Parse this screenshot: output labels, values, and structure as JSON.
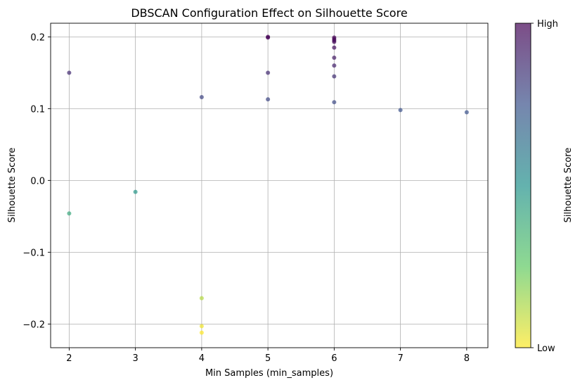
{
  "chart_data": {
    "type": "scatter",
    "title": "DBSCAN Configuration Effect on Silhouette Score",
    "xlabel": "Min Samples (min_samples)",
    "ylabel": "Silhouette Score",
    "xlim": [
      1.72,
      8.32
    ],
    "ylim": [
      -0.233,
      0.219
    ],
    "xticks": [
      2,
      3,
      4,
      5,
      6,
      7,
      8
    ],
    "yticks": [
      -0.2,
      -0.1,
      0.0,
      0.1,
      0.2
    ],
    "ytick_labels": [
      "−0.2",
      "−0.1",
      "0.0",
      "0.1",
      "0.2"
    ],
    "grid": true,
    "colormap": "viridis_r",
    "point_alpha": 0.7,
    "colorbar": {
      "label": "Silhouette Score",
      "tick_labels": [
        "High",
        "Low"
      ]
    },
    "points": [
      {
        "x": 2,
        "y": 0.15
      },
      {
        "x": 2,
        "y": -0.046
      },
      {
        "x": 3,
        "y": -0.016
      },
      {
        "x": 4,
        "y": 0.116
      },
      {
        "x": 4,
        "y": -0.164
      },
      {
        "x": 4,
        "y": -0.203
      },
      {
        "x": 4,
        "y": -0.212
      },
      {
        "x": 5,
        "y": 0.2
      },
      {
        "x": 5,
        "y": 0.199
      },
      {
        "x": 5,
        "y": 0.15
      },
      {
        "x": 5,
        "y": 0.113
      },
      {
        "x": 6,
        "y": 0.199
      },
      {
        "x": 6,
        "y": 0.197
      },
      {
        "x": 6,
        "y": 0.195
      },
      {
        "x": 6,
        "y": 0.193
      },
      {
        "x": 6,
        "y": 0.185
      },
      {
        "x": 6,
        "y": 0.171
      },
      {
        "x": 6,
        "y": 0.16
      },
      {
        "x": 6,
        "y": 0.145
      },
      {
        "x": 6,
        "y": 0.109
      },
      {
        "x": 7,
        "y": 0.098
      },
      {
        "x": 8,
        "y": 0.095
      }
    ]
  }
}
